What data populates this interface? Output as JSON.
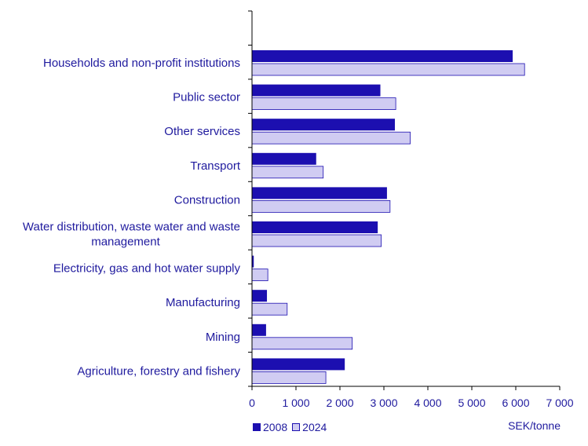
{
  "chart_data": {
    "type": "bar",
    "orientation": "horizontal",
    "categories": [
      "Households and non-profit institutions",
      "Public sector",
      "Other services",
      "Transport",
      "Construction",
      "Water distribution, waste water and waste management",
      "Electricity, gas and hot water supply",
      "Manufacturing",
      "Mining",
      "Agriculture, forestry and fishery"
    ],
    "category_label_lines": [
      [
        "Households and non-profit institutions"
      ],
      [
        "Public sector"
      ],
      [
        "Other services"
      ],
      [
        "Transport"
      ],
      [
        "Construction"
      ],
      [
        "Water distribution, waste water and waste",
        "management"
      ],
      [
        "Electricity, gas and hot water supply"
      ],
      [
        "Manufacturing"
      ],
      [
        "Mining"
      ],
      [
        "Agriculture, forestry and fishery"
      ]
    ],
    "series": [
      {
        "name": "2008",
        "color": "#1c0fb0",
        "values": [
          5930,
          2920,
          3250,
          1460,
          3070,
          2860,
          40,
          340,
          320,
          2110
        ]
      },
      {
        "name": "2024",
        "color": "#d0ccf2",
        "values": [
          6200,
          3270,
          3600,
          1620,
          3140,
          2940,
          360,
          800,
          2280,
          1680
        ]
      }
    ],
    "xlim": [
      0,
      7000
    ],
    "xticks": [
      0,
      1000,
      2000,
      3000,
      4000,
      5000,
      6000,
      7000
    ],
    "xtick_labels": [
      "0",
      "1 000",
      "2 000",
      "3 000",
      "4 000",
      "5 000",
      "6 000",
      "7 000"
    ],
    "xlabel": "SEK/tonne",
    "title": "",
    "grid": false,
    "legend_position": "bottom-left"
  }
}
